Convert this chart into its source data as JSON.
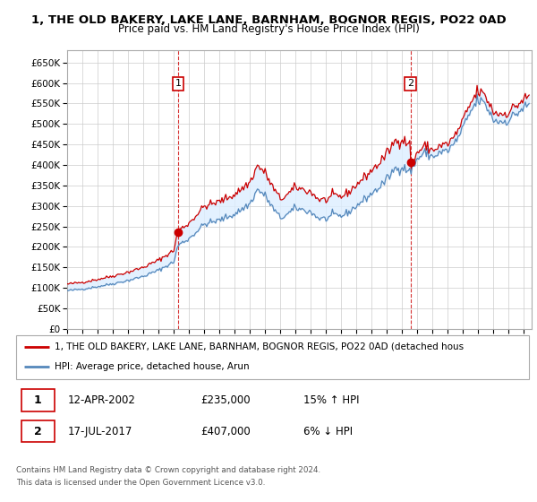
{
  "title": "1, THE OLD BAKERY, LAKE LANE, BARNHAM, BOGNOR REGIS, PO22 0AD",
  "subtitle": "Price paid vs. HM Land Registry's House Price Index (HPI)",
  "legend_label_red": "1, THE OLD BAKERY, LAKE LANE, BARNHAM, BOGNOR REGIS, PO22 0AD (detached hous",
  "legend_label_blue": "HPI: Average price, detached house, Arun",
  "footer1": "Contains HM Land Registry data © Crown copyright and database right 2024.",
  "footer2": "This data is licensed under the Open Government Licence v3.0.",
  "transaction1_label": "1",
  "transaction1_date": "12-APR-2002",
  "transaction1_price": "£235,000",
  "transaction1_hpi": "15% ↑ HPI",
  "transaction2_label": "2",
  "transaction2_date": "17-JUL-2017",
  "transaction2_price": "£407,000",
  "transaction2_hpi": "6% ↓ HPI",
  "ylim": [
    0,
    680000
  ],
  "yticks": [
    0,
    50000,
    100000,
    150000,
    200000,
    250000,
    300000,
    350000,
    400000,
    450000,
    500000,
    550000,
    600000,
    650000
  ],
  "red_color": "#cc0000",
  "blue_color": "#5588bb",
  "fill_color": "#ddeeff",
  "grid_color": "#cccccc",
  "bg_color": "#ffffff",
  "sale1_x": 2002.28,
  "sale1_y": 235000,
  "sale2_x": 2017.54,
  "sale2_y": 407000,
  "xlim_left": 1995.0,
  "xlim_right": 2025.5
}
